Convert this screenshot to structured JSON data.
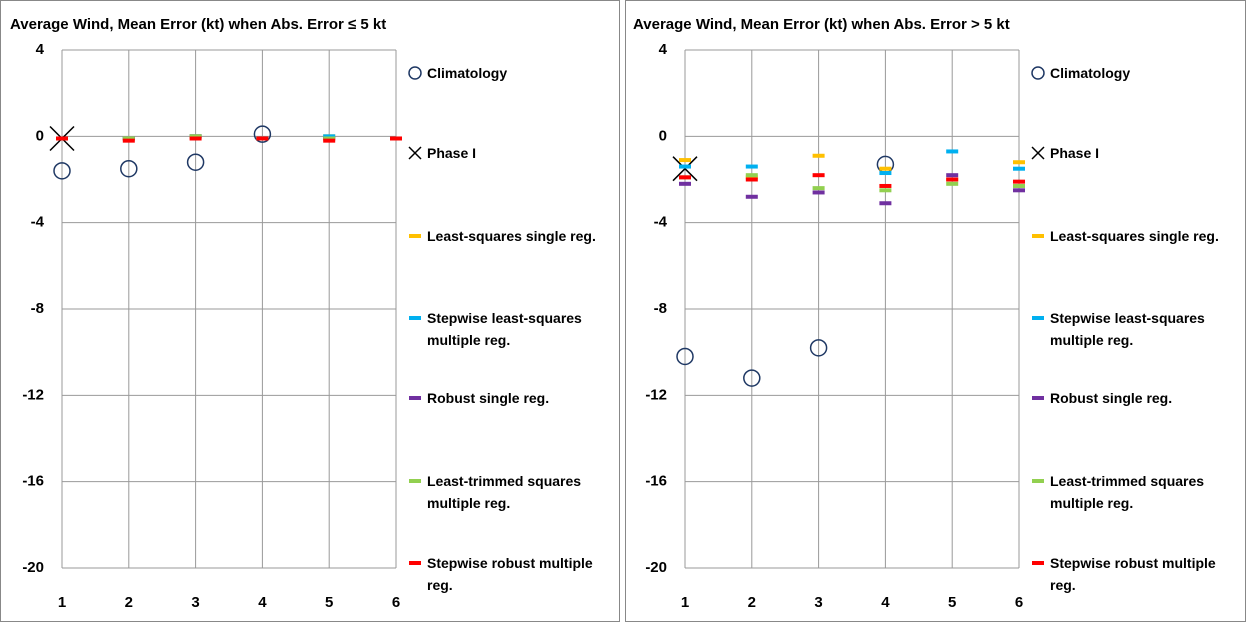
{
  "chart_data": [
    {
      "type": "scatter",
      "title": "Average Wind, Mean Error (kt) when Abs. Error ≤ 5 kt",
      "x": [
        1,
        2,
        3,
        4,
        5,
        6
      ],
      "xlim": [
        1,
        6
      ],
      "xticks": [
        1,
        2,
        3,
        4,
        5,
        6
      ],
      "ylim": [
        -20,
        4
      ],
      "yticks": [
        4,
        0,
        -4,
        -8,
        -12,
        -16,
        -20
      ],
      "grid": true,
      "series": [
        {
          "name": "Climatology",
          "color": "#1f3864",
          "marker": "circle",
          "values": [
            -1.6,
            -1.5,
            -1.2,
            0.1,
            null,
            null
          ]
        },
        {
          "name": "Phase I",
          "color": "#000000",
          "marker": "x",
          "values": [
            -0.1,
            null,
            null,
            null,
            null,
            null
          ]
        },
        {
          "name": "Least-squares single reg.",
          "color": "#ffc000",
          "marker": "dash",
          "values": [
            -0.1,
            -0.1,
            0,
            -0.1,
            0,
            -0.1
          ]
        },
        {
          "name": "Stepwise least-squares multiple reg.",
          "color": "#00b0f0",
          "marker": "dash",
          "values": [
            -0.1,
            -0.1,
            0,
            -0.1,
            0,
            -0.1
          ]
        },
        {
          "name": "Robust single reg.",
          "color": "#7030a0",
          "marker": "dash",
          "values": [
            -0.1,
            -0.1,
            0,
            -0.1,
            -0.1,
            -0.1
          ]
        },
        {
          "name": "Least-trimmed squares multiple reg.",
          "color": "#92d050",
          "marker": "dash",
          "values": [
            -0.1,
            -0.1,
            0,
            -0.1,
            -0.1,
            -0.1
          ]
        },
        {
          "name": "Stepwise robust multiple reg.",
          "color": "#ff0000",
          "marker": "dash",
          "values": [
            -0.1,
            -0.2,
            -0.1,
            -0.1,
            -0.2,
            -0.1
          ]
        }
      ]
    },
    {
      "type": "scatter",
      "title": "Average Wind, Mean Error (kt) when Abs. Error > 5 kt",
      "x": [
        1,
        2,
        3,
        4,
        5,
        6
      ],
      "xlim": [
        1,
        6
      ],
      "xticks": [
        1,
        2,
        3,
        4,
        5,
        6
      ],
      "ylim": [
        -20,
        4
      ],
      "yticks": [
        4,
        0,
        -4,
        -8,
        -12,
        -16,
        -20
      ],
      "grid": true,
      "series": [
        {
          "name": "Climatology",
          "color": "#1f3864",
          "marker": "circle",
          "values": [
            -10.2,
            -11.2,
            -9.8,
            -1.3,
            null,
            null
          ]
        },
        {
          "name": "Phase I",
          "color": "#000000",
          "marker": "x",
          "values": [
            -1.5,
            null,
            null,
            null,
            null,
            null
          ]
        },
        {
          "name": "Least-squares single reg.",
          "color": "#ffc000",
          "marker": "dash",
          "values": [
            -1.1,
            -1.9,
            -0.9,
            -1.5,
            -2.0,
            -1.2
          ]
        },
        {
          "name": "Stepwise least-squares multiple reg.",
          "color": "#00b0f0",
          "marker": "dash",
          "values": [
            -1.4,
            -1.4,
            null,
            -1.7,
            -0.7,
            -1.5
          ]
        },
        {
          "name": "Robust single reg.",
          "color": "#7030a0",
          "marker": "dash",
          "values": [
            -2.2,
            -2.8,
            -2.6,
            -3.1,
            -1.8,
            -2.5
          ]
        },
        {
          "name": "Least-trimmed squares multiple reg.",
          "color": "#92d050",
          "marker": "dash",
          "values": [
            -1.9,
            -1.8,
            -2.4,
            -2.5,
            -2.2,
            -2.3
          ]
        },
        {
          "name": "Stepwise robust multiple reg.",
          "color": "#ff0000",
          "marker": "dash",
          "values": [
            -1.9,
            -2.0,
            -1.8,
            -2.3,
            -2.0,
            -2.1
          ]
        }
      ]
    }
  ]
}
